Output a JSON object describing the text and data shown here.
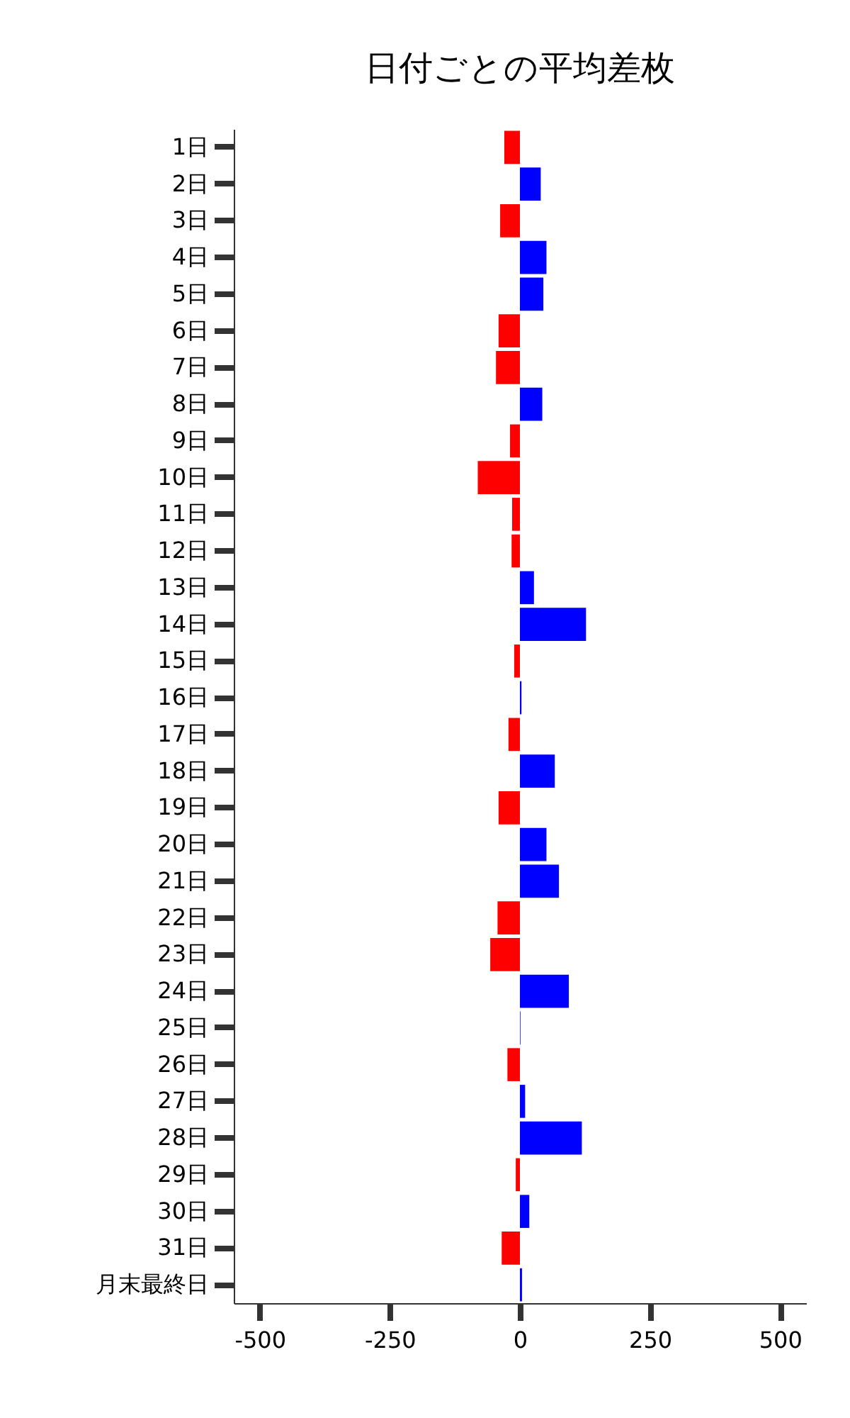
{
  "chart_data": {
    "type": "bar",
    "orientation": "horizontal",
    "title": "日付ごとの平均差枚",
    "categories": [
      "1日",
      "2日",
      "3日",
      "4日",
      "5日",
      "6日",
      "7日",
      "8日",
      "9日",
      "10日",
      "11日",
      "12日",
      "13日",
      "14日",
      "15日",
      "16日",
      "17日",
      "18日",
      "19日",
      "20日",
      "21日",
      "22日",
      "23日",
      "24日",
      "25日",
      "26日",
      "27日",
      "28日",
      "29日",
      "30日",
      "31日",
      "月末最終日"
    ],
    "values": [
      -30,
      40,
      -38,
      51,
      45,
      -41,
      -46,
      43,
      -19,
      -81,
      -15,
      -16,
      27,
      127,
      -11,
      3,
      -22,
      67,
      -41,
      51,
      75,
      -43,
      -57,
      94,
      1,
      -24,
      10,
      119,
      -8,
      18,
      -35,
      4
    ],
    "colors": [
      "#ff0000",
      "#0000ff",
      "#ff0000",
      "#0000ff",
      "#0000ff",
      "#ff0000",
      "#ff0000",
      "#0000ff",
      "#ff0000",
      "#ff0000",
      "#ff0000",
      "#ff0000",
      "#0000ff",
      "#0000ff",
      "#ff0000",
      "#0000ff",
      "#ff0000",
      "#0000ff",
      "#ff0000",
      "#0000ff",
      "#0000ff",
      "#ff0000",
      "#ff0000",
      "#0000ff",
      "#0000ff",
      "#ff0000",
      "#0000ff",
      "#0000ff",
      "#ff0000",
      "#0000ff",
      "#ff0000",
      "#0000ff"
    ],
    "xlim": [
      -550,
      550
    ],
    "xticks": [
      -500,
      -250,
      0,
      250,
      500
    ],
    "grid": false
  }
}
